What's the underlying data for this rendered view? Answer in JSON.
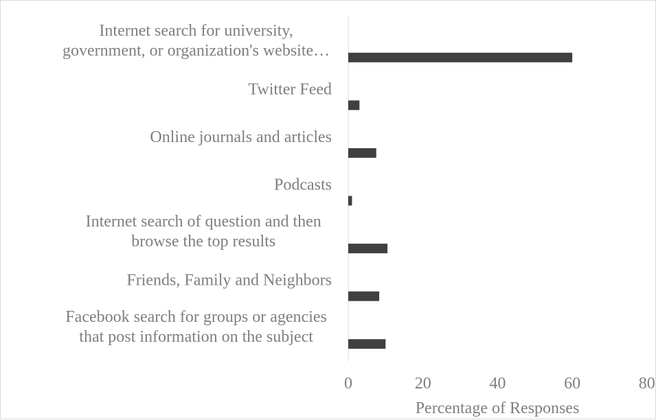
{
  "chart_data": {
    "type": "bar",
    "orientation": "horizontal",
    "categories": [
      [
        "Internet search for university,",
        "government, or organization's website…"
      ],
      [
        "Twitter Feed"
      ],
      [
        "Online journals and articles"
      ],
      [
        "Podcasts"
      ],
      [
        "Internet search of question and then",
        "browse the top results"
      ],
      [
        "Friends, Family and Neighbors"
      ],
      [
        "Facebook search for groups or agencies",
        "that post information on the subject"
      ]
    ],
    "values": [
      60,
      3,
      7.5,
      1,
      10.5,
      8.3,
      10
    ],
    "xlabel": "Percentage of Responses",
    "xlim": [
      0,
      80
    ],
    "xticks": [
      "0",
      "20",
      "40",
      "60",
      "80"
    ],
    "grid": false,
    "bar_color": "#404040",
    "text_color": "#7f7f7f",
    "axis_color": "#d9d9d9"
  }
}
